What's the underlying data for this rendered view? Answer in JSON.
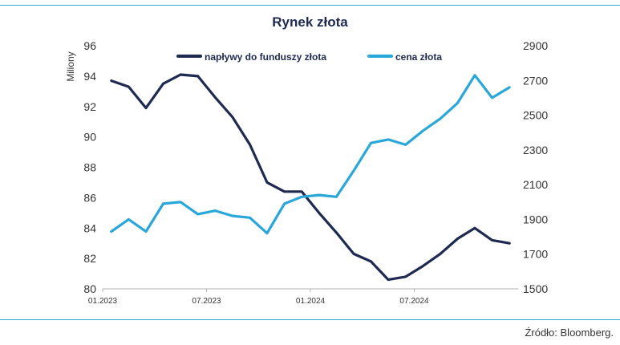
{
  "chart_data": {
    "type": "line",
    "title": "Rynek złota",
    "ylabel_left": "Miliony",
    "x_ticks": [
      "01.2023",
      "07.2023",
      "01.2024",
      "07.2024"
    ],
    "y_left": {
      "lim": [
        80,
        96
      ],
      "ticks": [
        80,
        82,
        84,
        86,
        88,
        90,
        92,
        94,
        96
      ]
    },
    "y_right": {
      "lim": [
        1500,
        2900
      ],
      "ticks": [
        1500,
        1700,
        1900,
        2100,
        2300,
        2500,
        2700,
        2900
      ]
    },
    "legend_position": "top-center",
    "series": [
      {
        "name": "napływy do funduszy złota",
        "axis": "left",
        "color": "#1e2a4f",
        "x": [
          "2023-01",
          "2023-02",
          "2023-03",
          "2023-04",
          "2023-05",
          "2023-06",
          "2023-07",
          "2023-08",
          "2023-09",
          "2023-10",
          "2023-11",
          "2023-12",
          "2024-01",
          "2024-02",
          "2024-03",
          "2024-04",
          "2024-05",
          "2024-06",
          "2024-07",
          "2024-08",
          "2024-09",
          "2024-10",
          "2024-11",
          "2024-12"
        ],
        "values": [
          93.7,
          93.3,
          91.9,
          93.5,
          94.1,
          94.0,
          92.6,
          91.3,
          89.5,
          87.0,
          86.4,
          86.4,
          85.0,
          83.7,
          82.3,
          81.8,
          80.6,
          80.8,
          81.5,
          82.3,
          83.3,
          84.0,
          83.2,
          83.0
        ],
        "labels": {}
      },
      {
        "name": "cena złota",
        "axis": "right",
        "color": "#2aa7d9",
        "x": [
          "2023-01",
          "2023-02",
          "2023-03",
          "2023-04",
          "2023-05",
          "2023-06",
          "2023-07",
          "2023-08",
          "2023-09",
          "2023-10",
          "2023-11",
          "2023-12",
          "2024-01",
          "2024-02",
          "2024-03",
          "2024-04",
          "2024-05",
          "2024-06",
          "2024-07",
          "2024-08",
          "2024-09",
          "2024-10",
          "2024-11",
          "2024-12"
        ],
        "values": [
          1830,
          1900,
          1830,
          1990,
          2000,
          1930,
          1950,
          1920,
          1910,
          1820,
          1990,
          2030,
          2040,
          2030,
          2180,
          2340,
          2360,
          2330,
          2410,
          2480,
          2570,
          2730,
          2600,
          2660
        ],
        "labels": {}
      }
    ]
  },
  "source": "Źródło: Bloomberg."
}
